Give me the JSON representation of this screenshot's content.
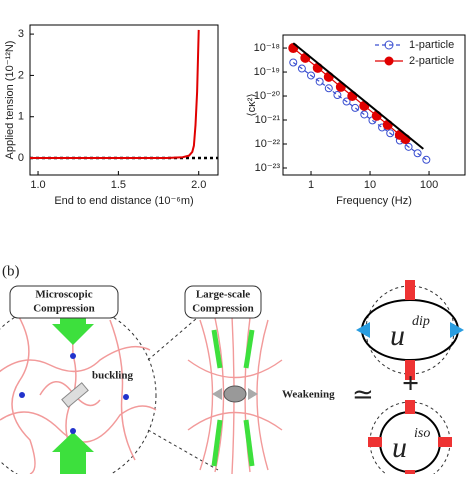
{
  "chart_data": [
    {
      "type": "line",
      "xlabel": "End to end distance (10⁻⁶m)",
      "ylabel": "Applied tension (10⁻¹²N)",
      "xlim": [
        0.95,
        2.12
      ],
      "ylim": [
        -0.41,
        3.22
      ],
      "xticks": [
        {
          "value": 1,
          "label": "1.0"
        },
        1.5,
        {
          "value": 2,
          "label": "2.0"
        }
      ],
      "yticks": [
        0,
        1,
        2,
        3
      ],
      "series": [
        {
          "color": "#e00000",
          "marker": "none",
          "x": [
            0.95,
            1.2,
            1.4,
            1.6,
            1.8,
            1.9,
            1.94,
            1.96,
            1.97,
            1.98,
            1.99,
            2.0
          ],
          "values": [
            0,
            0,
            0,
            0,
            0,
            0.02,
            0.06,
            0.15,
            0.3,
            0.8,
            1.6,
            3.1
          ]
        }
      ]
    },
    {
      "type": "line",
      "xlabel": "Frequency (Hz)",
      "ylabel": "⟨cκ²⟩",
      "xlog": true,
      "ylog": true,
      "xlim": [
        0.335,
        407
      ],
      "ylim": [
        5.1e-24,
        3.5e-18
      ],
      "xticks": [
        1,
        10,
        100
      ],
      "yticks": [
        {
          "value": 1e-18,
          "label": "10⁻¹⁸"
        },
        {
          "value": 1e-19,
          "label": "10⁻¹⁹"
        },
        {
          "value": 1e-20,
          "label": "10⁻²⁰"
        },
        {
          "value": 1e-21,
          "label": "10⁻²¹"
        },
        {
          "value": 1e-22,
          "label": "10⁻²²"
        },
        {
          "value": 1e-23,
          "label": "10⁻²³"
        }
      ],
      "legend": "upper right",
      "series": [
        {
          "name": "1-particle",
          "color": "#3a4fd0",
          "marker": "open",
          "dash": true,
          "x": [
            0.5,
            0.7,
            1,
            1.4,
            2,
            2.8,
            4,
            5.6,
            8,
            11,
            16,
            22,
            32,
            45,
            64,
            90
          ],
          "values": [
            2.5e-19,
            1.4e-19,
            7.2e-20,
            4e-20,
            2.1e-20,
            1.1e-20,
            5.9e-21,
            3.2e-21,
            1.7e-21,
            9.6e-22,
            4.9e-22,
            2.8e-22,
            1.4e-22,
            7.6e-23,
            4.1e-23,
            2.2e-23
          ]
        },
        {
          "name": "2-particle",
          "color": "#e00000",
          "marker": "filled",
          "x": [
            0.5,
            0.8,
            1.3,
            2,
            3.2,
            5,
            8,
            13,
            20,
            32,
            40
          ],
          "values": [
            1e-18,
            3.9e-19,
            1.5e-19,
            6.3e-20,
            2.4e-20,
            1e-20,
            3.9e-21,
            1.5e-21,
            6.3e-22,
            2.4e-22,
            1.6e-22
          ]
        },
        {
          "color": "#000000",
          "marker": "none",
          "x": [
            0.5,
            80
          ],
          "values": [
            1.6e-18,
            6.25e-23
          ]
        }
      ]
    }
  ],
  "diagram": {
    "panel_label": "(b)",
    "micro_title": [
      "Microscopic",
      "Compression"
    ],
    "buckling": "buckling",
    "large_title": [
      "Large-scale",
      "Compression"
    ],
    "weakening": "Weakening",
    "approx": "≃",
    "plus": "+",
    "u_dip": "u",
    "dip": "dip",
    "u_iso": "u",
    "iso": "iso"
  }
}
